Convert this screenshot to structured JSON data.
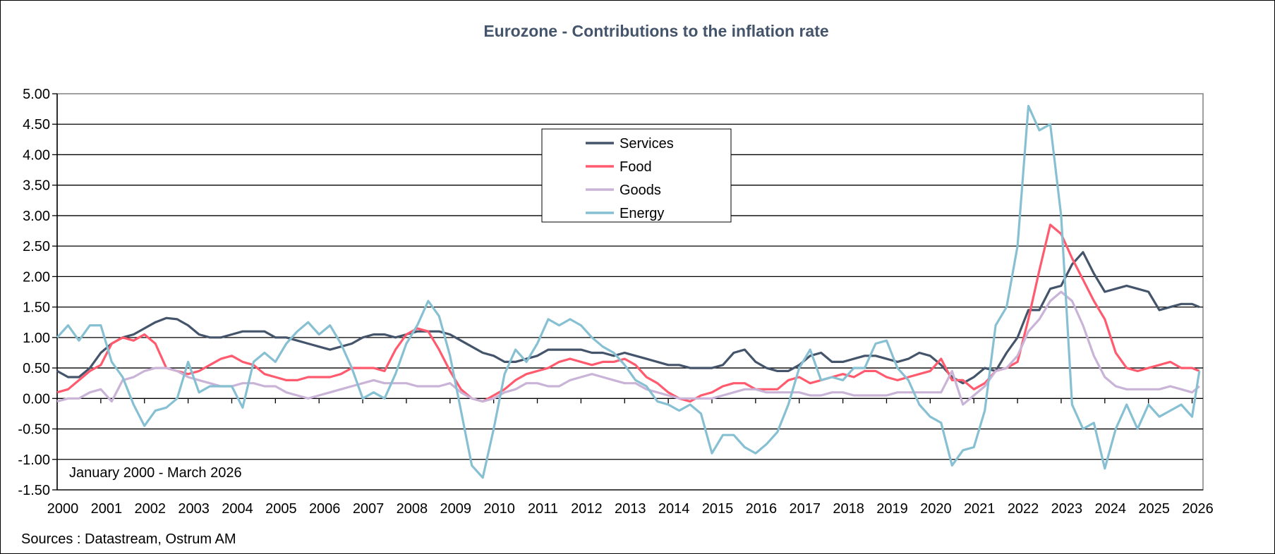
{
  "chart_data": {
    "type": "line",
    "title": "Eurozone - Contributions to the inflation rate",
    "period_note": "January 2000 - March 2026",
    "source": "Sources : Datastream, Ostrum AM",
    "ylim": [
      -1.5,
      5.0
    ],
    "yticks": [
      "5.00",
      "4.50",
      "4.00",
      "3.50",
      "3.00",
      "2.50",
      "2.00",
      "1.50",
      "1.00",
      "0.50",
      "0.00",
      "-0.50",
      "-1.00",
      "-1.50"
    ],
    "xticks": [
      "2000",
      "2001",
      "2002",
      "2003",
      "2004",
      "2005",
      "2006",
      "2007",
      "2008",
      "2009",
      "2010",
      "2011",
      "2012",
      "2013",
      "2014",
      "2015",
      "2016",
      "2017",
      "2018",
      "2019",
      "2020",
      "2021",
      "2022",
      "2023",
      "2024",
      "2025",
      "2026"
    ],
    "grid": true,
    "legend_position": "top-center",
    "x_start": "2000-01",
    "x_step_months": 3,
    "x_end": "2026-03",
    "series": [
      {
        "name": "Services",
        "color": "#44546a",
        "values": [
          0.45,
          0.35,
          0.35,
          0.5,
          0.75,
          0.9,
          1.0,
          1.05,
          1.15,
          1.25,
          1.32,
          1.3,
          1.2,
          1.05,
          1.0,
          1.0,
          1.05,
          1.1,
          1.1,
          1.1,
          1.0,
          1.0,
          0.95,
          0.9,
          0.85,
          0.8,
          0.85,
          0.9,
          1.0,
          1.05,
          1.05,
          1.0,
          1.05,
          1.1,
          1.1,
          1.1,
          1.05,
          0.95,
          0.85,
          0.75,
          0.7,
          0.6,
          0.6,
          0.65,
          0.7,
          0.8,
          0.8,
          0.8,
          0.8,
          0.75,
          0.75,
          0.7,
          0.75,
          0.7,
          0.65,
          0.6,
          0.55,
          0.55,
          0.5,
          0.5,
          0.5,
          0.55,
          0.75,
          0.8,
          0.6,
          0.5,
          0.45,
          0.45,
          0.55,
          0.7,
          0.75,
          0.6,
          0.6,
          0.65,
          0.7,
          0.7,
          0.65,
          0.6,
          0.65,
          0.75,
          0.7,
          0.55,
          0.35,
          0.25,
          0.35,
          0.5,
          0.45,
          0.75,
          1.0,
          1.45,
          1.45,
          1.8,
          1.85,
          2.2,
          2.4,
          2.05,
          1.75,
          1.8,
          1.85,
          1.8,
          1.75,
          1.45,
          1.5,
          1.55,
          1.55,
          1.5
        ]
      },
      {
        "name": "Food",
        "color": "#ff5a6e",
        "values": [
          0.1,
          0.15,
          0.3,
          0.45,
          0.55,
          0.9,
          1.0,
          0.95,
          1.05,
          0.9,
          0.5,
          0.45,
          0.4,
          0.45,
          0.55,
          0.65,
          0.7,
          0.6,
          0.55,
          0.4,
          0.35,
          0.3,
          0.3,
          0.35,
          0.35,
          0.35,
          0.4,
          0.5,
          0.5,
          0.5,
          0.45,
          0.8,
          1.05,
          1.15,
          1.1,
          0.8,
          0.45,
          0.15,
          0.0,
          -0.05,
          0.05,
          0.15,
          0.3,
          0.4,
          0.45,
          0.5,
          0.6,
          0.65,
          0.6,
          0.55,
          0.6,
          0.6,
          0.65,
          0.55,
          0.35,
          0.25,
          0.1,
          0.0,
          -0.05,
          0.05,
          0.1,
          0.2,
          0.25,
          0.25,
          0.15,
          0.15,
          0.15,
          0.3,
          0.35,
          0.25,
          0.3,
          0.35,
          0.4,
          0.35,
          0.45,
          0.45,
          0.35,
          0.3,
          0.35,
          0.4,
          0.45,
          0.65,
          0.3,
          0.3,
          0.15,
          0.25,
          0.45,
          0.5,
          0.6,
          1.3,
          2.1,
          2.85,
          2.7,
          2.3,
          1.95,
          1.6,
          1.3,
          0.75,
          0.5,
          0.45,
          0.5,
          0.55,
          0.6,
          0.5,
          0.5,
          0.45
        ]
      },
      {
        "name": "Goods",
        "color": "#c9b3d6",
        "values": [
          -0.05,
          0.0,
          0.0,
          0.1,
          0.15,
          -0.05,
          0.3,
          0.35,
          0.45,
          0.5,
          0.5,
          0.45,
          0.35,
          0.3,
          0.25,
          0.2,
          0.2,
          0.25,
          0.25,
          0.2,
          0.2,
          0.1,
          0.05,
          0.0,
          0.05,
          0.1,
          0.15,
          0.2,
          0.25,
          0.3,
          0.25,
          0.25,
          0.25,
          0.2,
          0.2,
          0.2,
          0.25,
          0.1,
          0.0,
          -0.05,
          0.0,
          0.1,
          0.15,
          0.25,
          0.25,
          0.2,
          0.2,
          0.3,
          0.35,
          0.4,
          0.35,
          0.3,
          0.25,
          0.25,
          0.15,
          0.1,
          0.05,
          0.0,
          0.0,
          0.0,
          0.0,
          0.05,
          0.1,
          0.15,
          0.15,
          0.1,
          0.1,
          0.1,
          0.1,
          0.05,
          0.05,
          0.1,
          0.1,
          0.05,
          0.05,
          0.05,
          0.05,
          0.1,
          0.1,
          0.1,
          0.1,
          0.1,
          0.45,
          -0.1,
          0.05,
          0.2,
          0.45,
          0.5,
          0.7,
          1.1,
          1.3,
          1.6,
          1.75,
          1.6,
          1.2,
          0.7,
          0.35,
          0.2,
          0.15,
          0.15,
          0.15,
          0.15,
          0.2,
          0.15,
          0.1,
          0.2
        ]
      },
      {
        "name": "Energy",
        "color": "#86c0d2",
        "values": [
          1.0,
          1.2,
          0.95,
          1.2,
          1.2,
          0.6,
          0.35,
          -0.1,
          -0.45,
          -0.2,
          -0.15,
          0.0,
          0.6,
          0.1,
          0.2,
          0.2,
          0.2,
          -0.15,
          0.6,
          0.75,
          0.6,
          0.9,
          1.1,
          1.25,
          1.05,
          1.2,
          0.9,
          0.5,
          0.0,
          0.1,
          0.0,
          0.4,
          0.9,
          1.2,
          1.6,
          1.35,
          0.7,
          -0.2,
          -1.1,
          -1.3,
          -0.5,
          0.4,
          0.8,
          0.6,
          0.9,
          1.3,
          1.2,
          1.3,
          1.2,
          1.0,
          0.85,
          0.75,
          0.55,
          0.3,
          0.2,
          -0.05,
          -0.1,
          -0.2,
          -0.1,
          -0.25,
          -0.9,
          -0.6,
          -0.6,
          -0.8,
          -0.9,
          -0.75,
          -0.55,
          -0.1,
          0.5,
          0.8,
          0.3,
          0.35,
          0.3,
          0.5,
          0.5,
          0.9,
          0.95,
          0.5,
          0.3,
          -0.1,
          -0.3,
          -0.4,
          -1.1,
          -0.85,
          -0.8,
          -0.2,
          1.2,
          1.5,
          2.5,
          4.8,
          4.4,
          4.5,
          3.0,
          -0.1,
          -0.5,
          -0.4,
          -1.15,
          -0.5,
          -0.1,
          -0.5,
          -0.1,
          -0.3,
          -0.2,
          -0.1,
          -0.3,
          0.45
        ]
      }
    ]
  }
}
